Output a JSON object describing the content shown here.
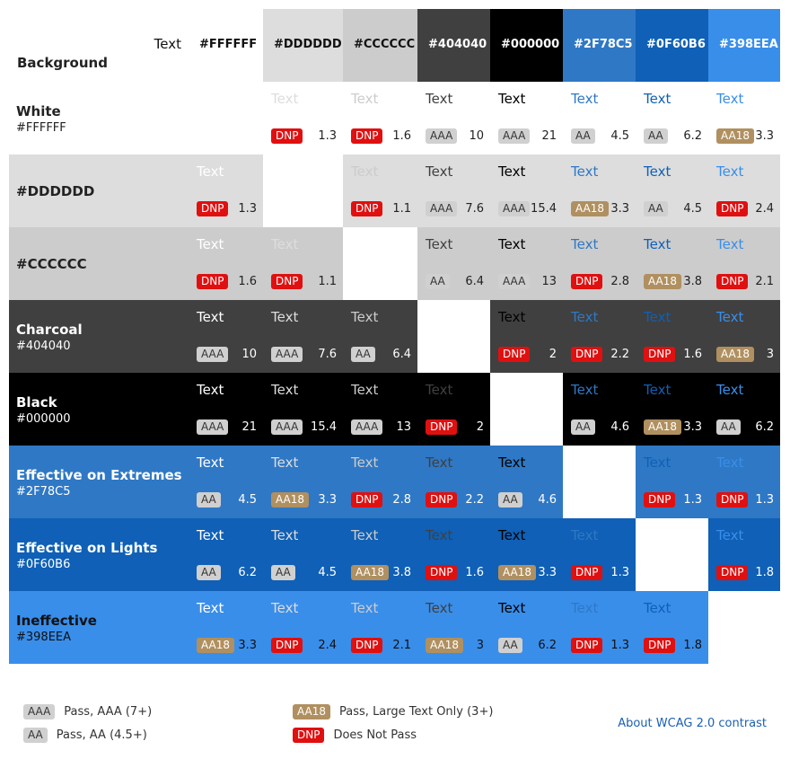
{
  "corner": {
    "text_label": "Text",
    "bg_label": "Background"
  },
  "columns": [
    {
      "label": "#FFFFFF",
      "bg": "#FFFFFF",
      "fg": "#111111",
      "width": 83
    },
    {
      "label": "#DDDDDD",
      "bg": "#DDDDDD",
      "fg": "#111111",
      "width": 89
    },
    {
      "label": "#CCCCCC",
      "bg": "#CCCCCC",
      "fg": "#111111",
      "width": 83
    },
    {
      "label": "#404040",
      "bg": "#404040",
      "fg": "#FFFFFF",
      "width": 81
    },
    {
      "label": "#000000",
      "bg": "#000000",
      "fg": "#FFFFFF",
      "width": 81
    },
    {
      "label": "#2F78C5",
      "bg": "#2F78C5",
      "fg": "#FFFFFF",
      "width": 81
    },
    {
      "label": "#0F60B6",
      "bg": "#0F60B6",
      "fg": "#FFFFFF",
      "width": 81
    },
    {
      "label": "#398EEA",
      "bg": "#398EEA",
      "fg": "#FFFFFF",
      "width": 80
    }
  ],
  "rows": [
    {
      "name": "White",
      "hex": "#FFFFFF",
      "bg": "#FFFFFF",
      "fg": "#222222",
      "cells": [
        null,
        {
          "text": "Text",
          "badge": "DNP",
          "ratio": "1.3"
        },
        {
          "text": "Text",
          "badge": "DNP",
          "ratio": "1.6"
        },
        {
          "text": "Text",
          "badge": "AAA",
          "ratio": "10"
        },
        {
          "text": "Text",
          "badge": "AAA",
          "ratio": "21"
        },
        {
          "text": "Text",
          "badge": "AA",
          "ratio": "4.5"
        },
        {
          "text": "Text",
          "badge": "AA",
          "ratio": "6.2"
        },
        {
          "text": "Text",
          "badge": "AA18",
          "ratio": "3.3"
        }
      ]
    },
    {
      "name": "#DDDDDD",
      "hex": "",
      "bg": "#DDDDDD",
      "fg": "#222222",
      "cells": [
        {
          "text": "Text",
          "badge": "DNP",
          "ratio": "1.3"
        },
        null,
        {
          "text": "Text",
          "badge": "DNP",
          "ratio": "1.1"
        },
        {
          "text": "Text",
          "badge": "AAA",
          "ratio": "7.6"
        },
        {
          "text": "Text",
          "badge": "AAA",
          "ratio": "15.4"
        },
        {
          "text": "Text",
          "badge": "AA18",
          "ratio": "3.3"
        },
        {
          "text": "Text",
          "badge": "AA",
          "ratio": "4.5"
        },
        {
          "text": "Text",
          "badge": "DNP",
          "ratio": "2.4"
        }
      ]
    },
    {
      "name": "#CCCCCC",
      "hex": "",
      "bg": "#CCCCCC",
      "fg": "#222222",
      "cells": [
        {
          "text": "Text",
          "badge": "DNP",
          "ratio": "1.6"
        },
        {
          "text": "Text",
          "badge": "DNP",
          "ratio": "1.1"
        },
        null,
        {
          "text": "Text",
          "badge": "AA",
          "ratio": "6.4"
        },
        {
          "text": "Text",
          "badge": "AAA",
          "ratio": "13"
        },
        {
          "text": "Text",
          "badge": "DNP",
          "ratio": "2.8"
        },
        {
          "text": "Text",
          "badge": "AA18",
          "ratio": "3.8"
        },
        {
          "text": "Text",
          "badge": "DNP",
          "ratio": "2.1"
        }
      ]
    },
    {
      "name": "Charcoal",
      "hex": "#404040",
      "bg": "#404040",
      "fg": "#FFFFFF",
      "cells": [
        {
          "text": "Text",
          "badge": "AAA",
          "ratio": "10"
        },
        {
          "text": "Text",
          "badge": "AAA",
          "ratio": "7.6"
        },
        {
          "text": "Text",
          "badge": "AA",
          "ratio": "6.4"
        },
        null,
        {
          "text": "Text",
          "badge": "DNP",
          "ratio": "2"
        },
        {
          "text": "Text",
          "badge": "DNP",
          "ratio": "2.2"
        },
        {
          "text": "Text",
          "badge": "DNP",
          "ratio": "1.6"
        },
        {
          "text": "Text",
          "badge": "AA18",
          "ratio": "3"
        }
      ]
    },
    {
      "name": "Black",
      "hex": "#000000",
      "bg": "#000000",
      "fg": "#FFFFFF",
      "cells": [
        {
          "text": "Text",
          "badge": "AAA",
          "ratio": "21"
        },
        {
          "text": "Text",
          "badge": "AAA",
          "ratio": "15.4"
        },
        {
          "text": "Text",
          "badge": "AAA",
          "ratio": "13"
        },
        {
          "text": "Text",
          "badge": "DNP",
          "ratio": "2"
        },
        null,
        {
          "text": "Text",
          "badge": "AA",
          "ratio": "4.6"
        },
        {
          "text": "Text",
          "badge": "AA18",
          "ratio": "3.3"
        },
        {
          "text": "Text",
          "badge": "AA",
          "ratio": "6.2"
        }
      ]
    },
    {
      "name": "Effective on Extremes",
      "hex": "#2F78C5",
      "bg": "#2F78C5",
      "fg": "#FFFFFF",
      "cells": [
        {
          "text": "Text",
          "badge": "AA",
          "ratio": "4.5"
        },
        {
          "text": "Text",
          "badge": "AA18",
          "ratio": "3.3"
        },
        {
          "text": "Text",
          "badge": "DNP",
          "ratio": "2.8"
        },
        {
          "text": "Text",
          "badge": "DNP",
          "ratio": "2.2"
        },
        {
          "text": "Text",
          "badge": "AA",
          "ratio": "4.6"
        },
        null,
        {
          "text": "Text",
          "badge": "DNP",
          "ratio": "1.3"
        },
        {
          "text": "Text",
          "badge": "DNP",
          "ratio": "1.3"
        }
      ]
    },
    {
      "name": "Effective on Lights",
      "hex": "#0F60B6",
      "bg": "#0F60B6",
      "fg": "#FFFFFF",
      "cells": [
        {
          "text": "Text",
          "badge": "AA",
          "ratio": "6.2"
        },
        {
          "text": "Text",
          "badge": "AA",
          "ratio": "4.5"
        },
        {
          "text": "Text",
          "badge": "AA18",
          "ratio": "3.8"
        },
        {
          "text": "Text",
          "badge": "DNP",
          "ratio": "1.6"
        },
        {
          "text": "Text",
          "badge": "AA18",
          "ratio": "3.3"
        },
        {
          "text": "Text",
          "badge": "DNP",
          "ratio": "1.3"
        },
        null,
        {
          "text": "Text",
          "badge": "DNP",
          "ratio": "1.8"
        }
      ]
    },
    {
      "name": "Ineffective",
      "hex": "#398EEA",
      "bg": "#398EEA",
      "fg": "#111111",
      "cells": [
        {
          "text": "Text",
          "badge": "AA18",
          "ratio": "3.3"
        },
        {
          "text": "Text",
          "badge": "DNP",
          "ratio": "2.4"
        },
        {
          "text": "Text",
          "badge": "DNP",
          "ratio": "2.1"
        },
        {
          "text": "Text",
          "badge": "AA18",
          "ratio": "3"
        },
        {
          "text": "Text",
          "badge": "AA",
          "ratio": "6.2"
        },
        {
          "text": "Text",
          "badge": "DNP",
          "ratio": "1.3"
        },
        {
          "text": "Text",
          "badge": "DNP",
          "ratio": "1.8"
        },
        null
      ]
    }
  ],
  "legend": {
    "aaa_badge": "AAA",
    "aaa_label": "Pass, AAA (7+)",
    "aa_badge": "AA",
    "aa_label": "Pass, AA (4.5+)",
    "aa18_badge": "AA18",
    "aa18_label": "Pass, Large Text Only (3+)",
    "dnp_badge": "DNP",
    "dnp_label": "Does Not Pass",
    "about_link": "About WCAG 2.0 contrast"
  }
}
